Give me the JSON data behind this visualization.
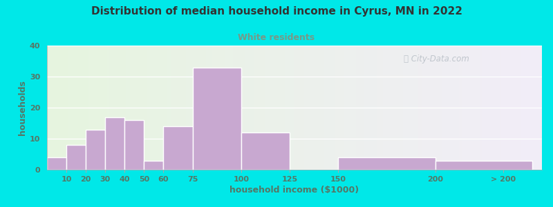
{
  "title": "Distribution of median household income in Cyrus, MN in 2022",
  "subtitle": "White residents",
  "xlabel": "household income ($1000)",
  "ylabel": "households",
  "bar_color": "#c8a8d0",
  "bar_edge_color": "#ffffff",
  "background_outer": "#00e8e8",
  "background_inner_left": "#e6f5df",
  "background_inner_right": "#f0ecf5",
  "title_color": "#333333",
  "subtitle_color": "#779988",
  "axis_label_color": "#557766",
  "tick_label_color": "#557766",
  "watermark": "City-Data.com",
  "categories": [
    "10",
    "20",
    "30",
    "40",
    "50",
    "60",
    "75",
    "100",
    "125",
    "150",
    "200",
    "> 200"
  ],
  "values": [
    4,
    8,
    13,
    17,
    16,
    3,
    14,
    33,
    12,
    0,
    4,
    3
  ],
  "left_edges": [
    0,
    10,
    20,
    30,
    40,
    50,
    60,
    75,
    100,
    125,
    150,
    200
  ],
  "right_edges": [
    10,
    20,
    30,
    40,
    50,
    60,
    75,
    100,
    125,
    150,
    200,
    250
  ],
  "xtick_positions": [
    10,
    20,
    30,
    40,
    50,
    60,
    75,
    100,
    125,
    150,
    200,
    235
  ],
  "ylim": [
    0,
    40
  ],
  "yticks": [
    0,
    10,
    20,
    30,
    40
  ],
  "xlim": [
    0,
    255
  ],
  "figsize": [
    8.0,
    3.0
  ],
  "dpi": 100
}
